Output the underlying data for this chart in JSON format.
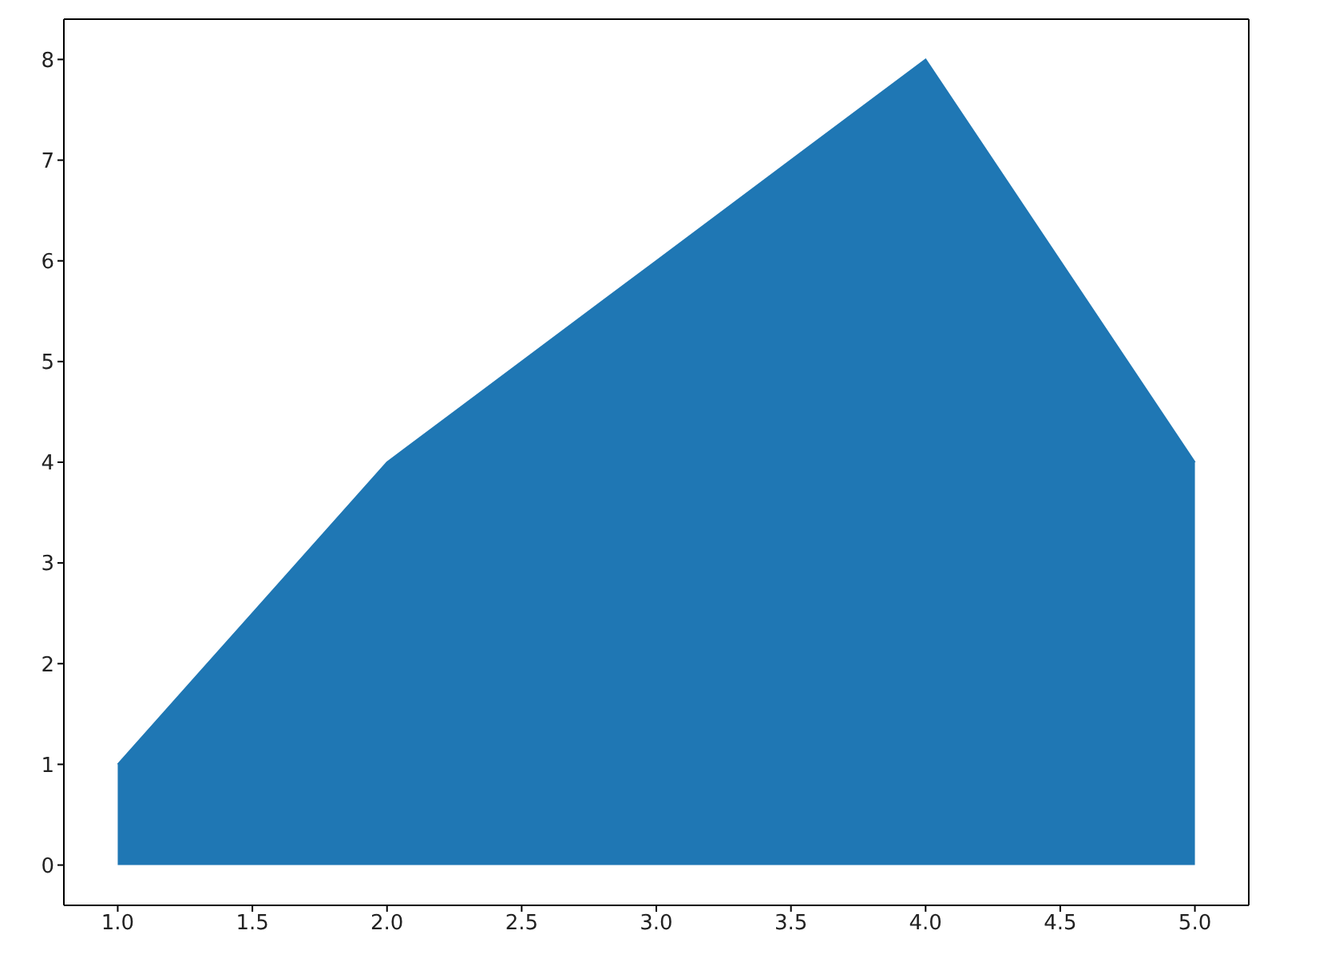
{
  "chart_data": {
    "type": "area",
    "x": [
      1,
      2,
      3,
      4,
      5
    ],
    "series": [
      {
        "color": "#1f77b4",
        "values": [
          1,
          4,
          6,
          8,
          4
        ]
      }
    ],
    "xlim": [
      0.8,
      5.2
    ],
    "xticks": [
      {
        "value": 1,
        "label": "1.0"
      },
      {
        "value": 1.5,
        "label": "1.5"
      },
      {
        "value": 2,
        "label": "2.0"
      },
      {
        "value": 2.5,
        "label": "2.5"
      },
      {
        "value": 3,
        "label": "3.0"
      },
      {
        "value": 3.5,
        "label": "3.5"
      },
      {
        "value": 4,
        "label": "4.0"
      },
      {
        "value": 4.5,
        "label": "4.5"
      },
      {
        "value": 5,
        "label": "5.0"
      }
    ],
    "ylim": [
      -0.4,
      8.4
    ],
    "yticks": [
      0,
      1,
      2,
      3,
      4,
      5,
      6,
      7,
      8
    ],
    "grid": false
  }
}
